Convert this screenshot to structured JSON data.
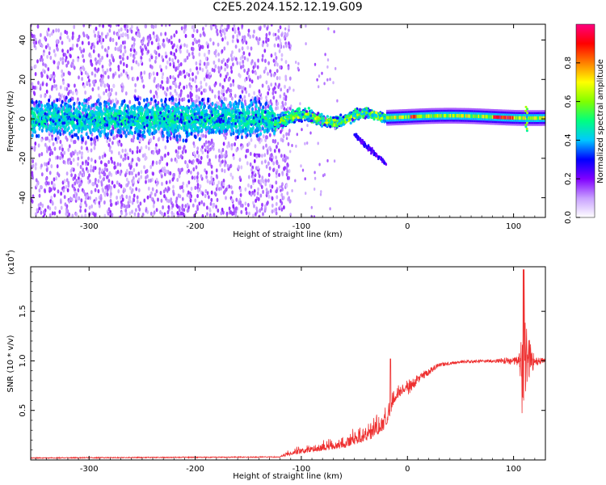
{
  "title": "C2E5.2024.152.12.19.G09",
  "chart_data": [
    {
      "type": "heatmap",
      "xlabel": "Height of straight line (km)",
      "ylabel": "Frequency (Hz)",
      "xlim": [
        -355,
        130
      ],
      "ylim": [
        -50,
        48
      ],
      "xticks": [
        -300,
        -200,
        -100,
        0,
        100
      ],
      "yticks": [
        -40,
        -20,
        0,
        20,
        40
      ],
      "colorbar": {
        "label": "Normalized spectral amplitude",
        "range": [
          0,
          1
        ],
        "ticks": [
          0.0,
          0.2,
          0.4,
          0.6,
          0.8
        ],
        "colors": [
          "#ffffff",
          "#c8a0ff",
          "#8000ff",
          "#0000ff",
          "#00c8ff",
          "#00ff80",
          "#80ff00",
          "#ffff00",
          "#ff8000",
          "#ff0000",
          "#ff0080"
        ]
      },
      "band": {
        "center_freq_hz": 0,
        "noisy_region_km": [
          -355,
          -125
        ],
        "transition_region_km": [
          -125,
          -20
        ],
        "coherent_region_km": [
          -20,
          130
        ],
        "spike_height_km": 112
      }
    },
    {
      "type": "line",
      "xlabel": "Height of straight line (km)",
      "ylabel": "SNR (10 * v/v)",
      "yscale_label": "(x10",
      "yscale_exp": "4",
      "yscale_close": ")",
      "xlim": [
        -355,
        130
      ],
      "ylim": [
        0,
        1.95
      ],
      "xticks": [
        -300,
        -200,
        -100,
        0,
        100
      ],
      "yticks": [
        0.5,
        1.0,
        1.5
      ],
      "ytick_labels": [
        "0.5",
        "1.0",
        "1.5"
      ],
      "series": [
        {
          "color": "#ee3030",
          "profile_x": [
            -355,
            -120,
            -115,
            -100,
            -60,
            -30,
            -20,
            -12,
            0,
            10,
            30,
            50,
            80,
            105,
            110,
            115,
            120,
            130
          ],
          "profile_y": [
            0.02,
            0.03,
            0.05,
            0.08,
            0.15,
            0.28,
            0.38,
            0.62,
            0.72,
            0.82,
            0.96,
            0.99,
            1.0,
            1.0,
            1.02,
            1.01,
            1.0,
            1.0
          ],
          "noise_amp": [
            0.005,
            0.005,
            0.04,
            0.06,
            0.1,
            0.18,
            0.22,
            0.12,
            0.08,
            0.05,
            0.02,
            0.015,
            0.015,
            0.05,
            0.5,
            0.2,
            0.05,
            0.02
          ]
        }
      ]
    }
  ]
}
